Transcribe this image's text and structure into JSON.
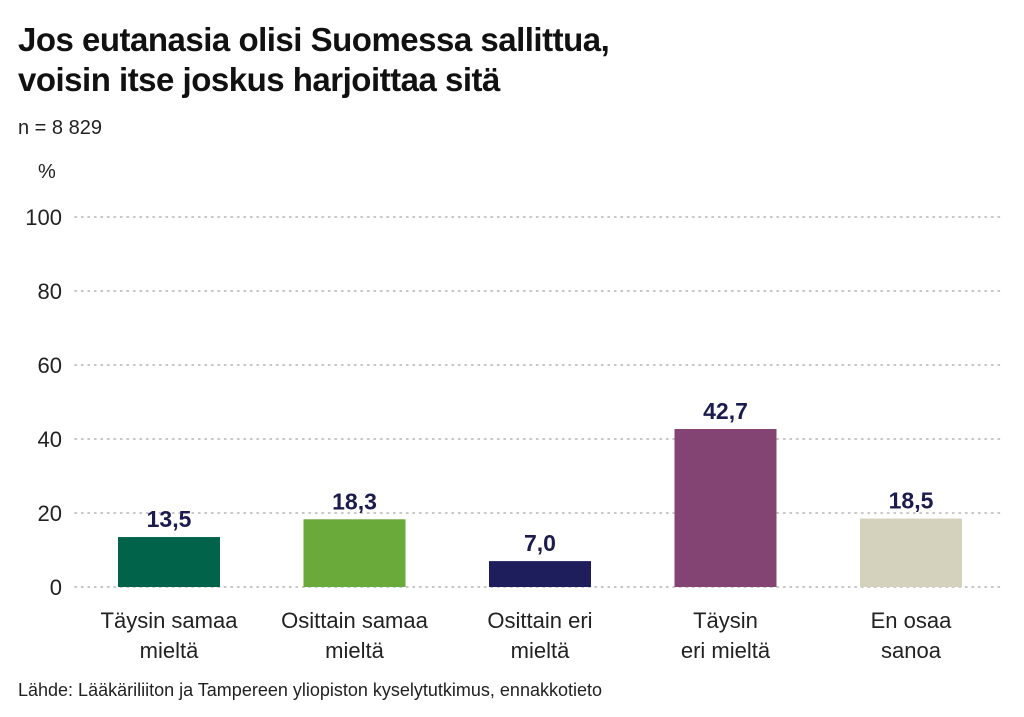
{
  "title_lines": [
    "Jos eutanasia olisi Suomessa sallittua,",
    "voisin itse joskus harjoittaa sitä"
  ],
  "subtitle": "n = 8 829",
  "source": "Lähde: Lääkäriliiton ja Tampereen yliopiston kyselytutkimus, ennakkotieto",
  "chart_data": {
    "type": "bar",
    "title": "Jos eutanasia olisi Suomessa sallittua, voisin itse joskus harjoittaa sitä",
    "ylabel": "%",
    "xlabel": "",
    "ylim": [
      0,
      100
    ],
    "yticks": [
      0,
      20,
      40,
      60,
      80,
      100
    ],
    "grid": true,
    "categories": [
      [
        "Täysin samaa",
        "mieltä"
      ],
      [
        "Osittain samaa",
        "mieltä"
      ],
      [
        "Osittain eri",
        "mieltä"
      ],
      [
        "Täysin",
        "eri mieltä"
      ],
      [
        "En osaa",
        "sanoa"
      ]
    ],
    "values": [
      13.5,
      18.3,
      7.0,
      42.7,
      18.5
    ],
    "value_labels": [
      "13,5",
      "18,3",
      "7,0",
      "42,7",
      "18,5"
    ],
    "colors": [
      "#00634a",
      "#6aaa3a",
      "#1e1e5c",
      "#834474",
      "#d4d1bd"
    ]
  }
}
